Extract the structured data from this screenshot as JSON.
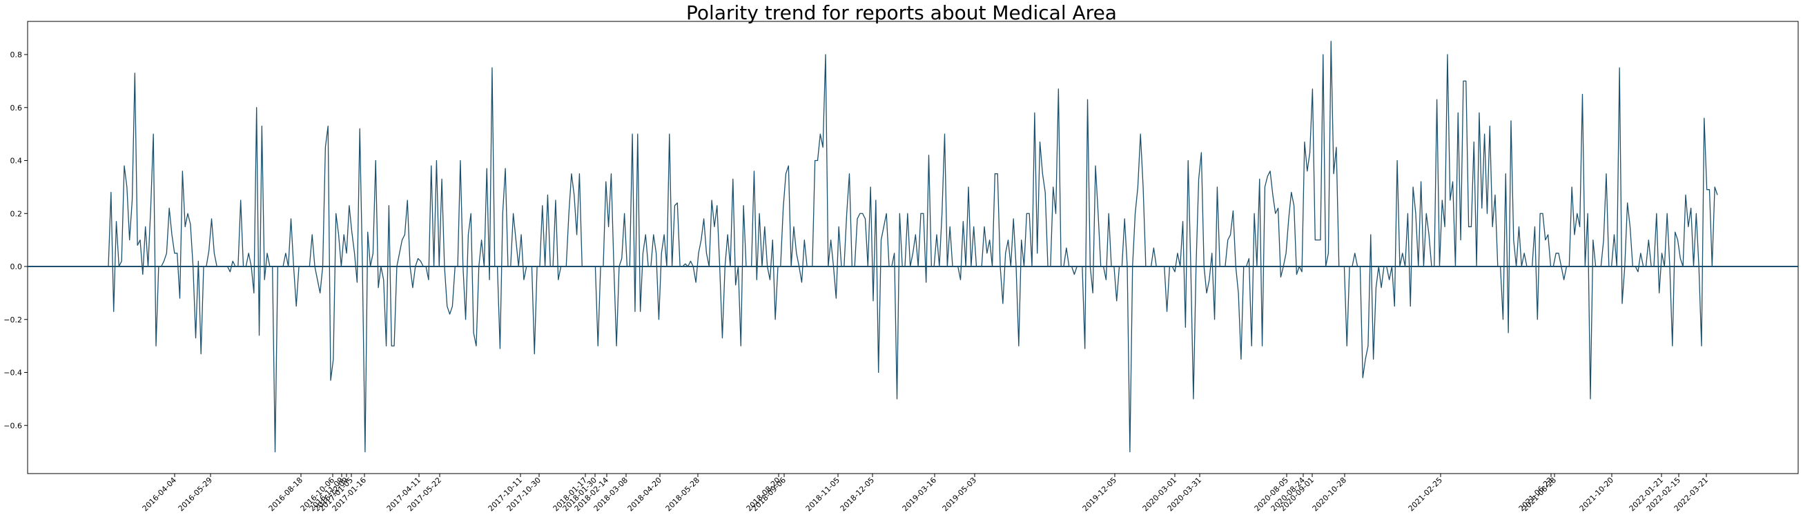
{
  "chart_data": {
    "type": "line",
    "title": "Polarity trend for reports about Medical Area",
    "xlabel": "",
    "ylabel": "",
    "ylim": [
      -0.78,
      0.93
    ],
    "y_ticks": [
      -0.6,
      -0.4,
      -0.2,
      0.0,
      0.2,
      0.4,
      0.6,
      0.8
    ],
    "y_tick_labels": [
      "−0.6",
      "−0.4",
      "−0.2",
      "0.0",
      "0.2",
      "0.4",
      "0.6",
      "0.8"
    ],
    "baseline": 0.0,
    "line_color": "#1b4f6b",
    "baseline_color": "#1b4f6b",
    "grid": false,
    "x_tick_labels": [
      "2016-04-04",
      "2016-05-29",
      "2016-08-18",
      "2016-10-06",
      "2016-11-09",
      "2016-12-09",
      "2017-01-05",
      "2017-01-16",
      "2017-04-11",
      "2017-05-22",
      "2017-10-11",
      "2017-10-30",
      "2018-01-17",
      "2018-01-30",
      "2018-02-14",
      "2018-03-08",
      "2018-04-20",
      "2018-05-28",
      "2018-08-20",
      "2018-09-06",
      "2018-11-05",
      "2018-12-05",
      "2019-03-16",
      "2019-05-03",
      "2019-12-05",
      "2020-03-01",
      "2020-03-31",
      "2020-08-05",
      "2020-08-24",
      "2020-09-01",
      "2020-10-28",
      "2021-02-25",
      "2021-06-23",
      "2021-06-28",
      "2021-10-20",
      "2022-01-21",
      "2022-02-15",
      "2022-03-21"
    ],
    "series": [
      {
        "values": [
          0.0,
          0.28,
          -0.17,
          0.17,
          0.0,
          0.02,
          0.38,
          0.3,
          0.1,
          0.25,
          0.73,
          0.08,
          0.1,
          -0.03,
          0.15,
          0.0,
          0.22,
          0.5,
          -0.3,
          0.0,
          0.0,
          0.02,
          0.05,
          0.22,
          0.12,
          0.05,
          0.05,
          -0.12,
          0.36,
          0.15,
          0.2,
          0.16,
          0.0,
          -0.27,
          0.02,
          -0.33,
          0.0,
          0.0,
          0.06,
          0.18,
          0.05,
          0.0,
          0.0,
          0.0,
          0.0,
          0.0,
          -0.02,
          0.02,
          0.0,
          0.0,
          0.25,
          0.0,
          0.0,
          0.05,
          0.0,
          -0.1,
          0.6,
          -0.26,
          0.53,
          -0.05,
          0.05,
          0.0,
          0.0,
          -0.7,
          0.0,
          0.0,
          0.0,
          0.05,
          0.0,
          0.18,
          0.0,
          -0.15,
          0.0,
          0.0,
          0.0,
          0.0,
          0.0,
          0.12,
          0.0,
          -0.05,
          -0.1,
          0.0,
          0.45,
          0.53,
          -0.43,
          -0.35,
          0.2,
          0.12,
          0.0,
          0.12,
          0.05,
          0.23,
          0.13,
          0.05,
          -0.06,
          0.52,
          0.0,
          -0.7,
          0.13,
          0.0,
          0.05,
          0.4,
          -0.08,
          0.0,
          -0.05,
          -0.3,
          0.23,
          -0.3,
          -0.3,
          0.0,
          0.05,
          0.1,
          0.12,
          0.25,
          0.0,
          -0.08,
          0.0,
          0.03,
          0.02,
          0.0,
          0.0,
          -0.05,
          0.38,
          0.0,
          0.4,
          0.0,
          0.33,
          0.0,
          -0.15,
          -0.18,
          -0.15,
          0.0,
          0.0,
          0.4,
          0.0,
          -0.2,
          0.12,
          0.2,
          -0.25,
          -0.3,
          0.0,
          0.1,
          0.0,
          0.37,
          -0.05,
          0.75,
          0.0,
          0.0,
          -0.31,
          0.2,
          0.37,
          0.0,
          0.0,
          0.2,
          0.1,
          0.0,
          0.12,
          -0.05,
          0.0,
          0.0,
          0.0,
          -0.33,
          0.0,
          0.0,
          0.23,
          0.0,
          0.27,
          0.0,
          0.0,
          0.25,
          -0.05,
          0.0,
          0.0,
          0.0,
          0.2,
          0.35,
          0.27,
          0.12,
          0.35,
          0.0,
          0.0,
          0.0,
          0.0,
          0.0,
          0.0,
          -0.3,
          0.0,
          0.0,
          0.32,
          0.15,
          0.35,
          0.0,
          -0.3,
          0.0,
          0.03,
          0.2,
          0.0,
          0.0,
          0.5,
          -0.17,
          0.5,
          -0.17,
          0.05,
          0.12,
          0.0,
          0.0,
          0.12,
          0.05,
          -0.2,
          0.05,
          0.12,
          0.0,
          0.5,
          0.0,
          0.23,
          0.24,
          0.0,
          0.0,
          0.01,
          0.0,
          0.02,
          0.0,
          -0.06,
          0.05,
          0.1,
          0.18,
          0.05,
          0.0,
          0.25,
          0.15,
          0.23,
          0.0,
          -0.27,
          0.0,
          0.12,
          0.0,
          0.33,
          -0.07,
          0.0,
          -0.3,
          0.23,
          0.0,
          0.0,
          0.0,
          0.36,
          -0.05,
          0.2,
          0.0,
          0.15,
          0.0,
          -0.05,
          0.1,
          -0.2,
          0.0,
          0.0,
          0.22,
          0.35,
          0.38,
          0.0,
          0.15,
          0.05,
          0.0,
          -0.06,
          0.1,
          0.0,
          0.0,
          0.0,
          0.4,
          0.4,
          0.5,
          0.45,
          0.8,
          0.0,
          0.1,
          0.0,
          -0.12,
          0.15,
          0.0,
          0.0,
          0.2,
          0.35,
          0.0,
          0.0,
          0.18,
          0.2,
          0.2,
          0.18,
          0.0,
          0.3,
          -0.13,
          0.25,
          -0.4,
          0.1,
          0.15,
          0.2,
          0.0,
          0.0,
          0.05,
          -0.5,
          0.2,
          0.0,
          0.0,
          0.2,
          0.0,
          0.05,
          0.12,
          0.0,
          0.2,
          0.2,
          -0.06,
          0.42,
          0.0,
          0.0,
          0.12,
          0.0,
          0.2,
          0.5,
          0.0,
          0.15,
          0.0,
          0.0,
          0.0,
          -0.05,
          0.17,
          0.0,
          0.3,
          0.0,
          0.15,
          0.0,
          0.0,
          0.0,
          0.15,
          0.05,
          0.1,
          0.0,
          0.35,
          0.35,
          0.0,
          -0.14,
          0.05,
          0.1,
          0.0,
          0.18,
          0.0,
          -0.3,
          0.1,
          0.0,
          0.2,
          0.2,
          0.0,
          0.58,
          0.05,
          0.47,
          0.35,
          0.28,
          0.0,
          0.0,
          0.3,
          0.2,
          0.67,
          0.0,
          0.0,
          0.07,
          0.0,
          0.0,
          -0.03,
          0.0,
          0.0,
          0.0,
          -0.31,
          0.63,
          0.0,
          -0.1,
          0.38,
          0.2,
          0.0,
          0.0,
          -0.05,
          0.2,
          0.0,
          0.0,
          -0.13,
          0.0,
          0.0,
          0.18,
          0.0,
          -0.7,
          0.0,
          0.2,
          0.3,
          0.5,
          0.3,
          0.0,
          0.0,
          0.0,
          0.07,
          0.0,
          0.0,
          0.0,
          0.0,
          -0.17,
          0.0,
          0.0,
          -0.02,
          0.05,
          0.0,
          0.17,
          -0.23,
          0.4,
          0.0,
          -0.5,
          0.0,
          0.33,
          0.43,
          0.0,
          -0.1,
          -0.05,
          0.05,
          -0.2,
          0.3,
          0.0,
          0.0,
          0.0,
          0.1,
          0.12,
          0.21,
          0.0,
          -0.1,
          -0.35,
          0.0,
          0.0,
          0.03,
          -0.3,
          0.2,
          0.0,
          0.33,
          -0.3,
          0.3,
          0.34,
          0.36,
          0.27,
          0.2,
          0.22,
          -0.04,
          0.0,
          0.05,
          0.18,
          0.28,
          0.23,
          -0.03,
          0.0,
          -0.02,
          0.47,
          0.36,
          0.43,
          0.67,
          0.1,
          0.1,
          0.1,
          0.8,
          0.0,
          0.05,
          0.85,
          0.35,
          0.45,
          0.0,
          0.0,
          0.0,
          -0.3,
          0.0,
          0.0,
          0.05,
          0.0,
          0.0,
          -0.42,
          -0.35,
          -0.3,
          0.12,
          -0.35,
          -0.08,
          0.0,
          -0.08,
          0.0,
          0.0,
          -0.05,
          0.0,
          -0.15,
          0.4,
          0.0,
          0.05,
          0.0,
          0.2,
          -0.15,
          0.3,
          0.2,
          0.0,
          0.32,
          0.0,
          0.2,
          0.12,
          0.0,
          0.0,
          0.63,
          0.0,
          0.25,
          0.15,
          0.8,
          0.25,
          0.32,
          0.0,
          0.58,
          0.1,
          0.7,
          0.7,
          0.15,
          0.15,
          0.47,
          0.0,
          0.58,
          0.22,
          0.5,
          0.2,
          0.53,
          0.15,
          0.27,
          0.0,
          0.0,
          -0.2,
          0.35,
          -0.25,
          0.55,
          0.1,
          0.0,
          0.15,
          0.0,
          0.05,
          0.0,
          0.0,
          0.0,
          0.15,
          -0.2,
          0.2,
          0.2,
          0.1,
          0.12,
          0.0,
          0.0,
          0.05,
          0.05,
          0.0,
          -0.05,
          0.0,
          0.0,
          0.3,
          0.12,
          0.2,
          0.15,
          0.65,
          0.0,
          0.2,
          -0.5,
          0.1,
          0.0,
          0.0,
          0.0,
          0.1,
          0.35,
          0.0,
          0.0,
          0.12,
          0.0,
          0.75,
          -0.14,
          0.0,
          0.24,
          0.15,
          0.0,
          0.0,
          -0.02,
          0.05,
          0.0,
          0.0,
          0.1,
          0.0,
          0.0,
          0.2,
          -0.1,
          0.05,
          0.0,
          0.2,
          0.0,
          -0.3,
          0.13,
          0.1,
          0.03,
          0.0,
          0.27,
          0.15,
          0.22,
          0.0,
          0.2,
          0.0,
          -0.3,
          0.56,
          0.29,
          0.29,
          0.0,
          0.3,
          0.27
        ]
      }
    ]
  }
}
